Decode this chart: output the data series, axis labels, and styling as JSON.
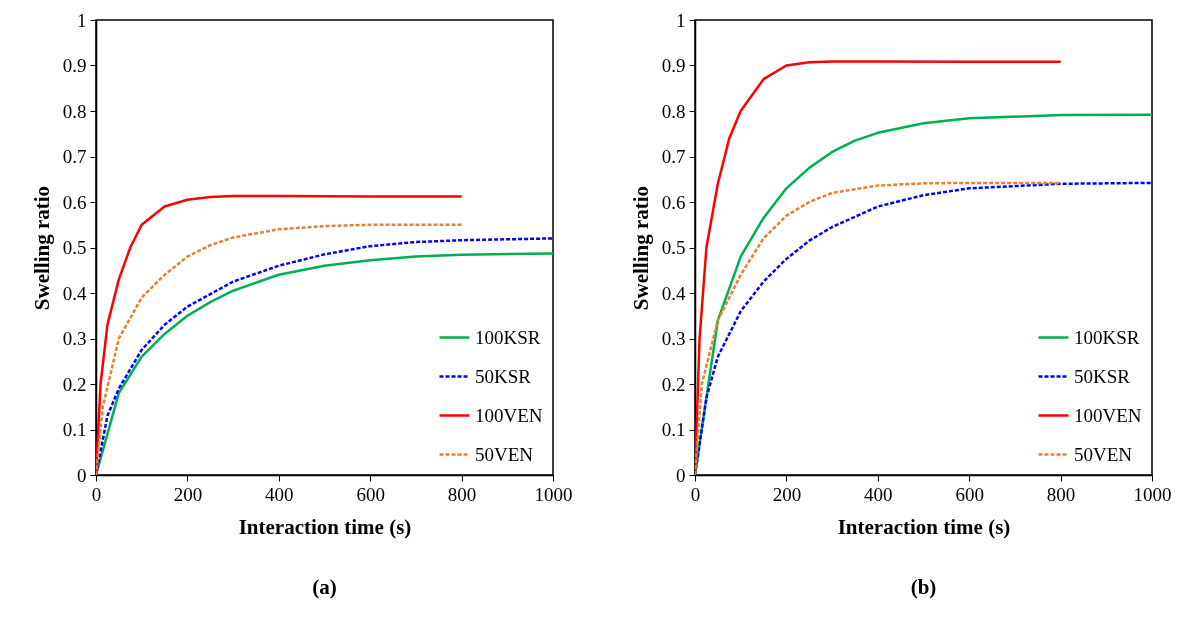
{
  "chart_data": [
    {
      "type": "line",
      "xlabel": "Interaction time (s)",
      "ylabel": "Swelling ratio",
      "annotations": [
        "(a)"
      ],
      "xlim": [
        0,
        1000
      ],
      "ylim": [
        0,
        1
      ],
      "xticks": [
        0,
        200,
        400,
        600,
        800,
        1000
      ],
      "yticks": [
        0,
        0.1,
        0.2,
        0.3,
        0.4,
        0.5,
        0.6,
        0.7,
        0.8,
        0.9,
        1
      ],
      "grid": false,
      "legend": "bottom right",
      "series": [
        {
          "name": "100KSR",
          "color": "#00b050",
          "line_style": "solid",
          "x": [
            0,
            50,
            100,
            150,
            200,
            250,
            300,
            400,
            500,
            600,
            700,
            800,
            1000
          ],
          "values": [
            0,
            0.18,
            0.26,
            0.31,
            0.35,
            0.38,
            0.405,
            0.44,
            0.46,
            0.472,
            0.48,
            0.484,
            0.487
          ]
        },
        {
          "name": "50KSR",
          "color": "#0000ff",
          "line_style": "dashed",
          "x": [
            0,
            25,
            50,
            100,
            150,
            200,
            300,
            400,
            500,
            600,
            700,
            800,
            1000
          ],
          "values": [
            0,
            0.13,
            0.19,
            0.275,
            0.33,
            0.37,
            0.425,
            0.46,
            0.485,
            0.503,
            0.512,
            0.516,
            0.52
          ]
        },
        {
          "name": "100VEN",
          "color": "#ff0000",
          "line_style": "solid",
          "x": [
            0,
            10,
            25,
            50,
            75,
            100,
            150,
            200,
            250,
            300,
            400,
            600,
            800
          ],
          "values": [
            0,
            0.2,
            0.33,
            0.43,
            0.5,
            0.55,
            0.59,
            0.605,
            0.611,
            0.613,
            0.613,
            0.612,
            0.612
          ]
        },
        {
          "name": "50VEN",
          "color": "#ed7d31",
          "line_style": "dashed",
          "x": [
            0,
            15,
            50,
            100,
            150,
            200,
            250,
            300,
            400,
            500,
            600,
            800
          ],
          "values": [
            0,
            0.15,
            0.3,
            0.39,
            0.44,
            0.48,
            0.505,
            0.522,
            0.54,
            0.547,
            0.55,
            0.55
          ]
        }
      ]
    },
    {
      "type": "line",
      "xlabel": "Interaction time (s)",
      "ylabel": "Swelling ratio",
      "annotations": [
        "(b)"
      ],
      "xlim": [
        0,
        1000
      ],
      "ylim": [
        0,
        1
      ],
      "xticks": [
        0,
        200,
        400,
        600,
        800,
        1000
      ],
      "yticks": [
        0,
        0.1,
        0.2,
        0.3,
        0.4,
        0.5,
        0.6,
        0.7,
        0.8,
        0.9,
        1
      ],
      "grid": false,
      "legend": "bottom right",
      "series": [
        {
          "name": "100KSR",
          "color": "#00b050",
          "line_style": "solid",
          "x": [
            0,
            50,
            100,
            150,
            200,
            250,
            300,
            350,
            400,
            500,
            600,
            800,
            1000
          ],
          "values": [
            0,
            0.34,
            0.48,
            0.565,
            0.63,
            0.675,
            0.71,
            0.735,
            0.752,
            0.773,
            0.784,
            0.791,
            0.792
          ]
        },
        {
          "name": "50KSR",
          "color": "#0000ff",
          "line_style": "dashed",
          "x": [
            0,
            25,
            50,
            100,
            150,
            200,
            250,
            300,
            400,
            500,
            600,
            800,
            1000
          ],
          "values": [
            0,
            0.17,
            0.26,
            0.36,
            0.425,
            0.475,
            0.515,
            0.545,
            0.59,
            0.615,
            0.63,
            0.64,
            0.642
          ]
        },
        {
          "name": "100VEN",
          "color": "#ff0000",
          "line_style": "solid",
          "x": [
            0,
            10,
            25,
            50,
            75,
            100,
            150,
            200,
            250,
            300,
            400,
            600,
            800
          ],
          "values": [
            0,
            0.3,
            0.5,
            0.64,
            0.74,
            0.8,
            0.87,
            0.9,
            0.907,
            0.909,
            0.909,
            0.908,
            0.908
          ]
        },
        {
          "name": "50VEN",
          "color": "#ed7d31",
          "line_style": "dashed",
          "x": [
            0,
            15,
            50,
            100,
            150,
            200,
            250,
            300,
            400,
            500,
            600,
            800
          ],
          "values": [
            0,
            0.2,
            0.34,
            0.44,
            0.52,
            0.57,
            0.6,
            0.62,
            0.636,
            0.641,
            0.642,
            0.642
          ]
        }
      ]
    }
  ]
}
